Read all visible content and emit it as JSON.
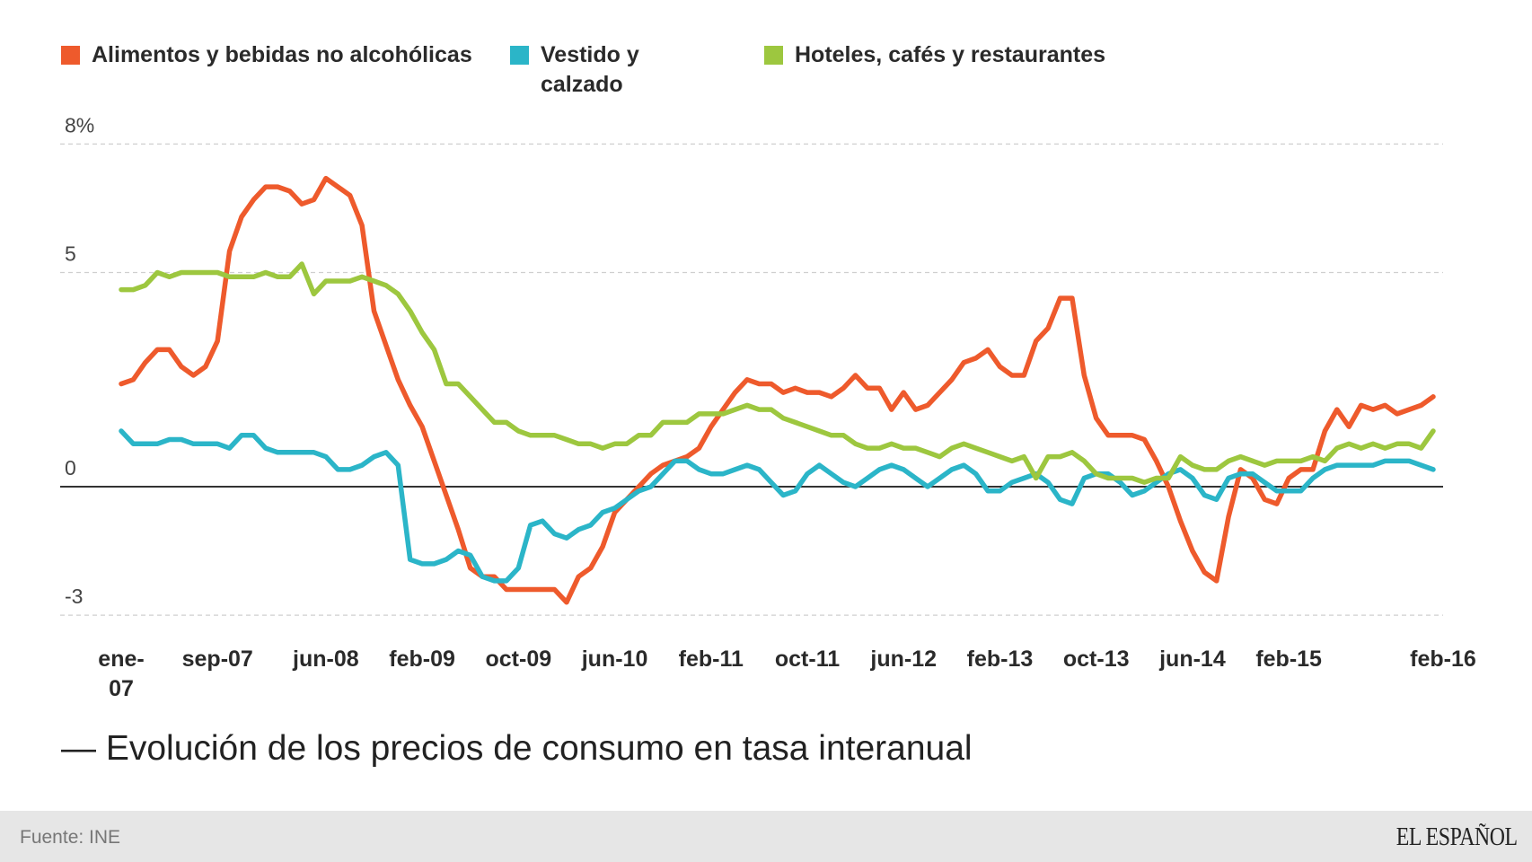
{
  "chart_data": {
    "type": "line",
    "title": "— Evolución de los precios de consumo en tasa interanual",
    "xlabel": "",
    "ylabel": "",
    "x_unit": "months since ene-07",
    "xlim": [
      0,
      109
    ],
    "ylim": [
      -3,
      8
    ],
    "grid": true,
    "legend_position": "top",
    "y_ticks": [
      {
        "value": 8,
        "label": "8%"
      },
      {
        "value": 5,
        "label": "5"
      },
      {
        "value": 0,
        "label": "0"
      },
      {
        "value": -3,
        "label": "-3"
      }
    ],
    "x_ticks": [
      {
        "month": 0,
        "label": "ene-",
        "label2": "07"
      },
      {
        "month": 8,
        "label": "sep-07"
      },
      {
        "month": 17,
        "label": "jun-08"
      },
      {
        "month": 25,
        "label": "feb-09"
      },
      {
        "month": 33,
        "label": "oct-09"
      },
      {
        "month": 41,
        "label": "jun-10"
      },
      {
        "month": 49,
        "label": "feb-11"
      },
      {
        "month": 57,
        "label": "oct-11"
      },
      {
        "month": 65,
        "label": "jun-12"
      },
      {
        "month": 73,
        "label": "feb-13"
      },
      {
        "month": 81,
        "label": "oct-13"
      },
      {
        "month": 89,
        "label": "jun-14"
      },
      {
        "month": 97,
        "label": "feb-15"
      },
      {
        "month": 109,
        "label": "feb-16"
      }
    ],
    "series": [
      {
        "name": "Alimentos y bebidas no alcohólicas",
        "color": "#ee5a2c",
        "values": [
          2.4,
          2.5,
          2.9,
          3.2,
          3.2,
          2.8,
          2.6,
          2.8,
          3.4,
          5.5,
          6.3,
          6.7,
          7.0,
          7.0,
          6.9,
          6.6,
          6.7,
          7.2,
          7.0,
          6.8,
          6.1,
          4.1,
          3.3,
          2.5,
          1.9,
          1.4,
          0.6,
          -0.2,
          -1.0,
          -1.9,
          -2.1,
          -2.1,
          -2.4,
          -2.4,
          -2.4,
          -2.4,
          -2.4,
          -2.7,
          -2.1,
          -1.9,
          -1.4,
          -0.6,
          -0.3,
          0,
          0.3,
          0.5,
          0.6,
          0.7,
          0.9,
          1.4,
          1.8,
          2.2,
          2.5,
          2.4,
          2.4,
          2.2,
          2.3,
          2.2,
          2.2,
          2.1,
          2.3,
          2.6,
          2.3,
          2.3,
          1.8,
          2.2,
          1.8,
          1.9,
          2.2,
          2.5,
          2.9,
          3.0,
          3.2,
          2.8,
          2.6,
          2.6,
          3.4,
          3.7,
          4.4,
          4.4,
          2.6,
          1.6,
          1.2,
          1.2,
          1.2,
          1.1,
          0.6,
          0,
          -0.8,
          -1.5,
          -2.0,
          -2.2,
          -0.7,
          0.4,
          0.2,
          -0.3,
          -0.4,
          0.2,
          0.4,
          0.4,
          1.3,
          1.8,
          1.4,
          1.9,
          1.8,
          1.9,
          1.7,
          1.8,
          1.9,
          2.1
        ]
      },
      {
        "name": "Vestido y calzado",
        "name_line1": "Vestido y",
        "name_line2": "calzado",
        "color": "#2bb5c8",
        "values": [
          1.3,
          1.0,
          1.0,
          1.0,
          1.1,
          1.1,
          1.0,
          1.0,
          1.0,
          0.9,
          1.2,
          1.2,
          0.9,
          0.8,
          0.8,
          0.8,
          0.8,
          0.7,
          0.4,
          0.4,
          0.5,
          0.7,
          0.8,
          0.5,
          -1.7,
          -1.8,
          -1.8,
          -1.7,
          -1.5,
          -1.6,
          -2.1,
          -2.2,
          -2.2,
          -1.9,
          -0.9,
          -0.8,
          -1.1,
          -1.2,
          -1.0,
          -0.9,
          -0.6,
          -0.5,
          -0.3,
          -0.1,
          0.0,
          0.3,
          0.6,
          0.6,
          0.4,
          0.3,
          0.3,
          0.4,
          0.5,
          0.4,
          0.1,
          -0.2,
          -0.1,
          0.3,
          0.5,
          0.3,
          0.1,
          0.0,
          0.2,
          0.4,
          0.5,
          0.4,
          0.2,
          0.0,
          0.2,
          0.4,
          0.5,
          0.3,
          -0.1,
          -0.1,
          0.1,
          0.2,
          0.3,
          0.1,
          -0.3,
          -0.4,
          0.2,
          0.3,
          0.3,
          0.1,
          -0.2,
          -0.1,
          0.1,
          0.3,
          0.4,
          0.2,
          -0.2,
          -0.3,
          0.2,
          0.3,
          0.3,
          0.1,
          -0.1,
          -0.1,
          -0.1,
          0.2,
          0.4,
          0.5,
          0.5,
          0.5,
          0.5,
          0.6,
          0.6,
          0.6,
          0.5,
          0.4
        ]
      },
      {
        "name": "Hoteles, cafés y restaurantes",
        "color": "#9dc73f",
        "values": [
          4.6,
          4.6,
          4.7,
          5.0,
          4.9,
          5.0,
          5.0,
          5.0,
          5.0,
          4.9,
          4.9,
          4.9,
          5.0,
          4.9,
          4.9,
          5.2,
          4.5,
          4.8,
          4.8,
          4.8,
          4.9,
          4.8,
          4.7,
          4.5,
          4.1,
          3.6,
          3.2,
          2.4,
          2.4,
          2.1,
          1.8,
          1.5,
          1.5,
          1.3,
          1.2,
          1.2,
          1.2,
          1.1,
          1.0,
          1.0,
          0.9,
          1.0,
          1.0,
          1.2,
          1.2,
          1.5,
          1.5,
          1.5,
          1.7,
          1.7,
          1.7,
          1.8,
          1.9,
          1.8,
          1.8,
          1.6,
          1.5,
          1.4,
          1.3,
          1.2,
          1.2,
          1.0,
          0.9,
          0.9,
          1.0,
          0.9,
          0.9,
          0.8,
          0.7,
          0.9,
          1.0,
          0.9,
          0.8,
          0.7,
          0.6,
          0.7,
          0.2,
          0.7,
          0.7,
          0.8,
          0.6,
          0.3,
          0.2,
          0.2,
          0.2,
          0.1,
          0.2,
          0.2,
          0.7,
          0.5,
          0.4,
          0.4,
          0.6,
          0.7,
          0.6,
          0.5,
          0.6,
          0.6,
          0.6,
          0.7,
          0.6,
          0.9,
          1.0,
          0.9,
          1.0,
          0.9,
          1.0,
          1.0,
          0.9,
          1.3
        ]
      }
    ]
  },
  "footer": {
    "source": "Fuente: INE",
    "logo": "EL ESPAÑOL"
  }
}
